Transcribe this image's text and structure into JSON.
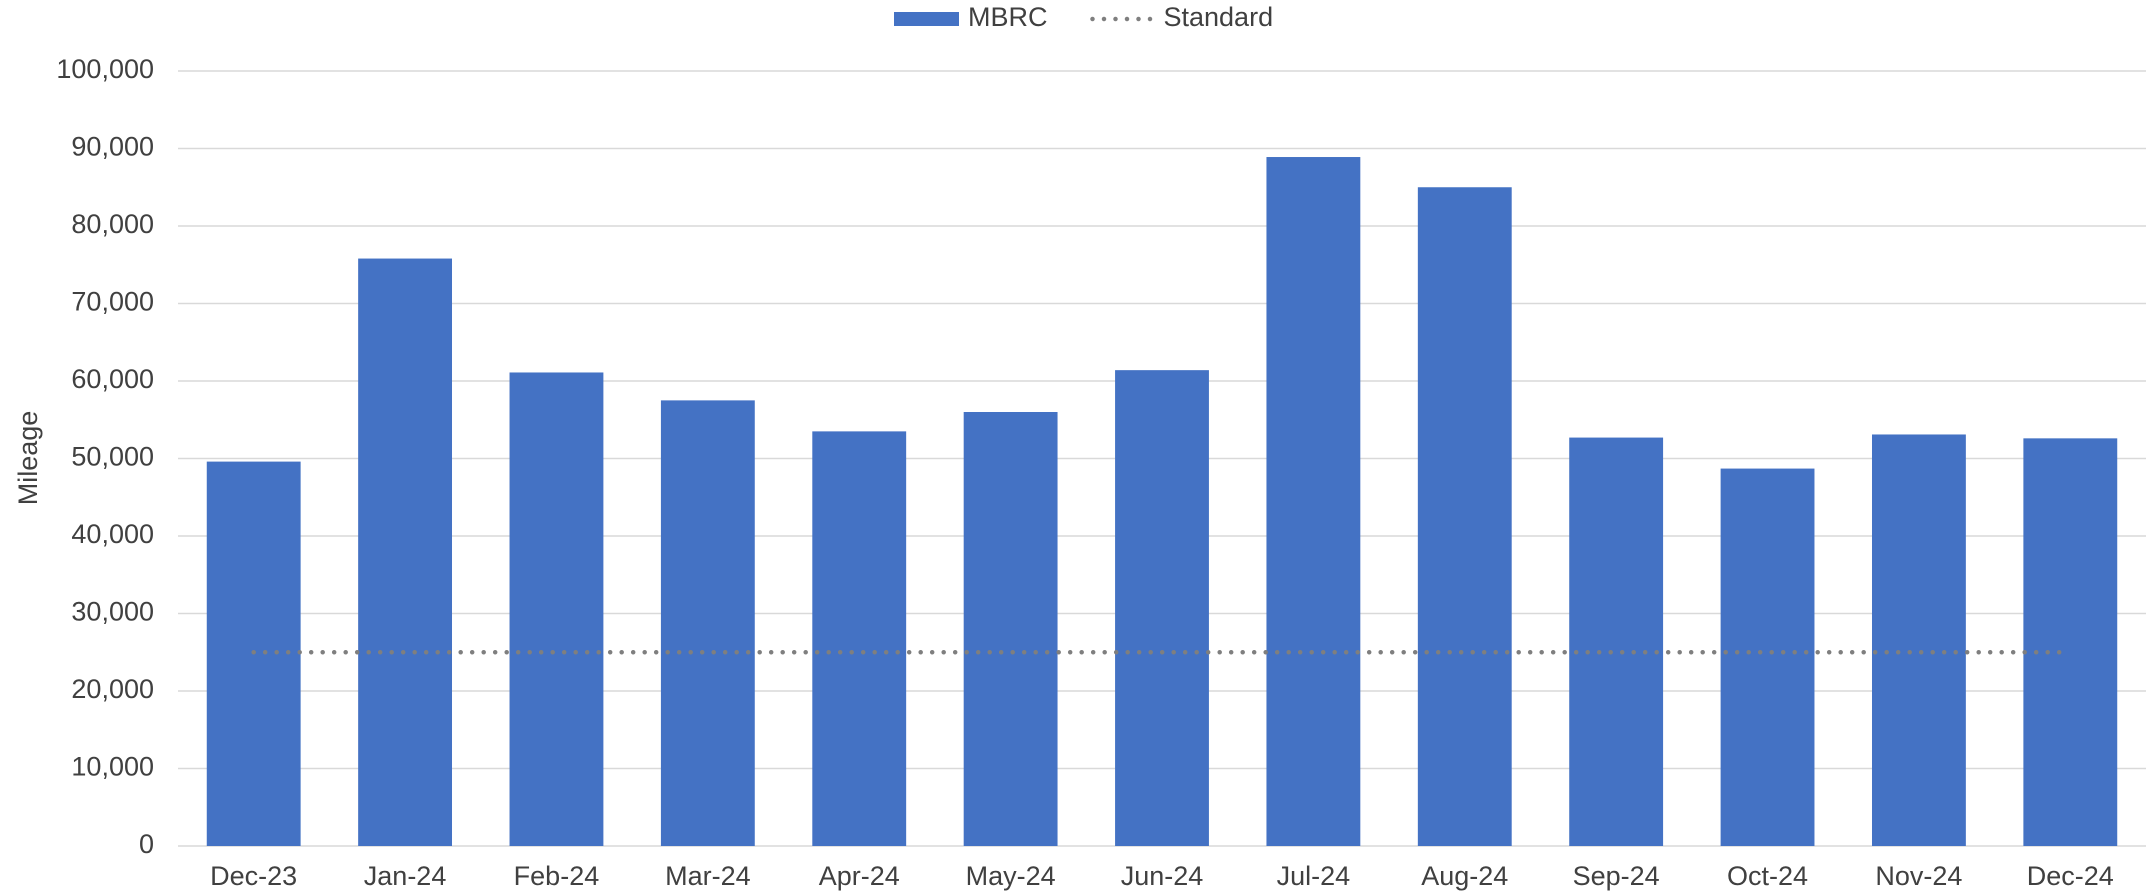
{
  "chart_data": {
    "type": "bar",
    "y_label": "Mileage",
    "categories": [
      "Dec-23",
      "Jan-24",
      "Feb-24",
      "Mar-24",
      "Apr-24",
      "May-24",
      "Jun-24",
      "Jul-24",
      "Aug-24",
      "Sep-24",
      "Oct-24",
      "Nov-24",
      "Dec-24"
    ],
    "series": [
      {
        "name": "MBRC",
        "type": "bar",
        "color": "#4472c4",
        "values": [
          49600,
          75800,
          61100,
          57500,
          53500,
          56000,
          61400,
          88900,
          85000,
          52700,
          48700,
          53100,
          52600
        ]
      },
      {
        "name": "Standard",
        "type": "line",
        "style": "dotted",
        "color": "#7f7f7f",
        "values": [
          25000,
          25000,
          25000,
          25000,
          25000,
          25000,
          25000,
          25000,
          25000,
          25000,
          25000,
          25000,
          25000
        ]
      }
    ],
    "ylim": [
      0,
      100000
    ],
    "yticks": [
      0,
      {
        "value": 10000,
        "label": "10,000"
      },
      {
        "value": 20000,
        "label": "20,000"
      },
      {
        "value": 30000,
        "label": "30,000"
      },
      {
        "value": 40000,
        "label": "40,000"
      },
      {
        "value": 50000,
        "label": "50,000"
      },
      {
        "value": 60000,
        "label": "60,000"
      },
      {
        "value": 70000,
        "label": "70,000"
      },
      {
        "value": 80000,
        "label": "80,000"
      },
      {
        "value": 90000,
        "label": "90,000"
      },
      {
        "value": 100000,
        "label": "100,000"
      }
    ],
    "grid": true,
    "legend": "top"
  }
}
